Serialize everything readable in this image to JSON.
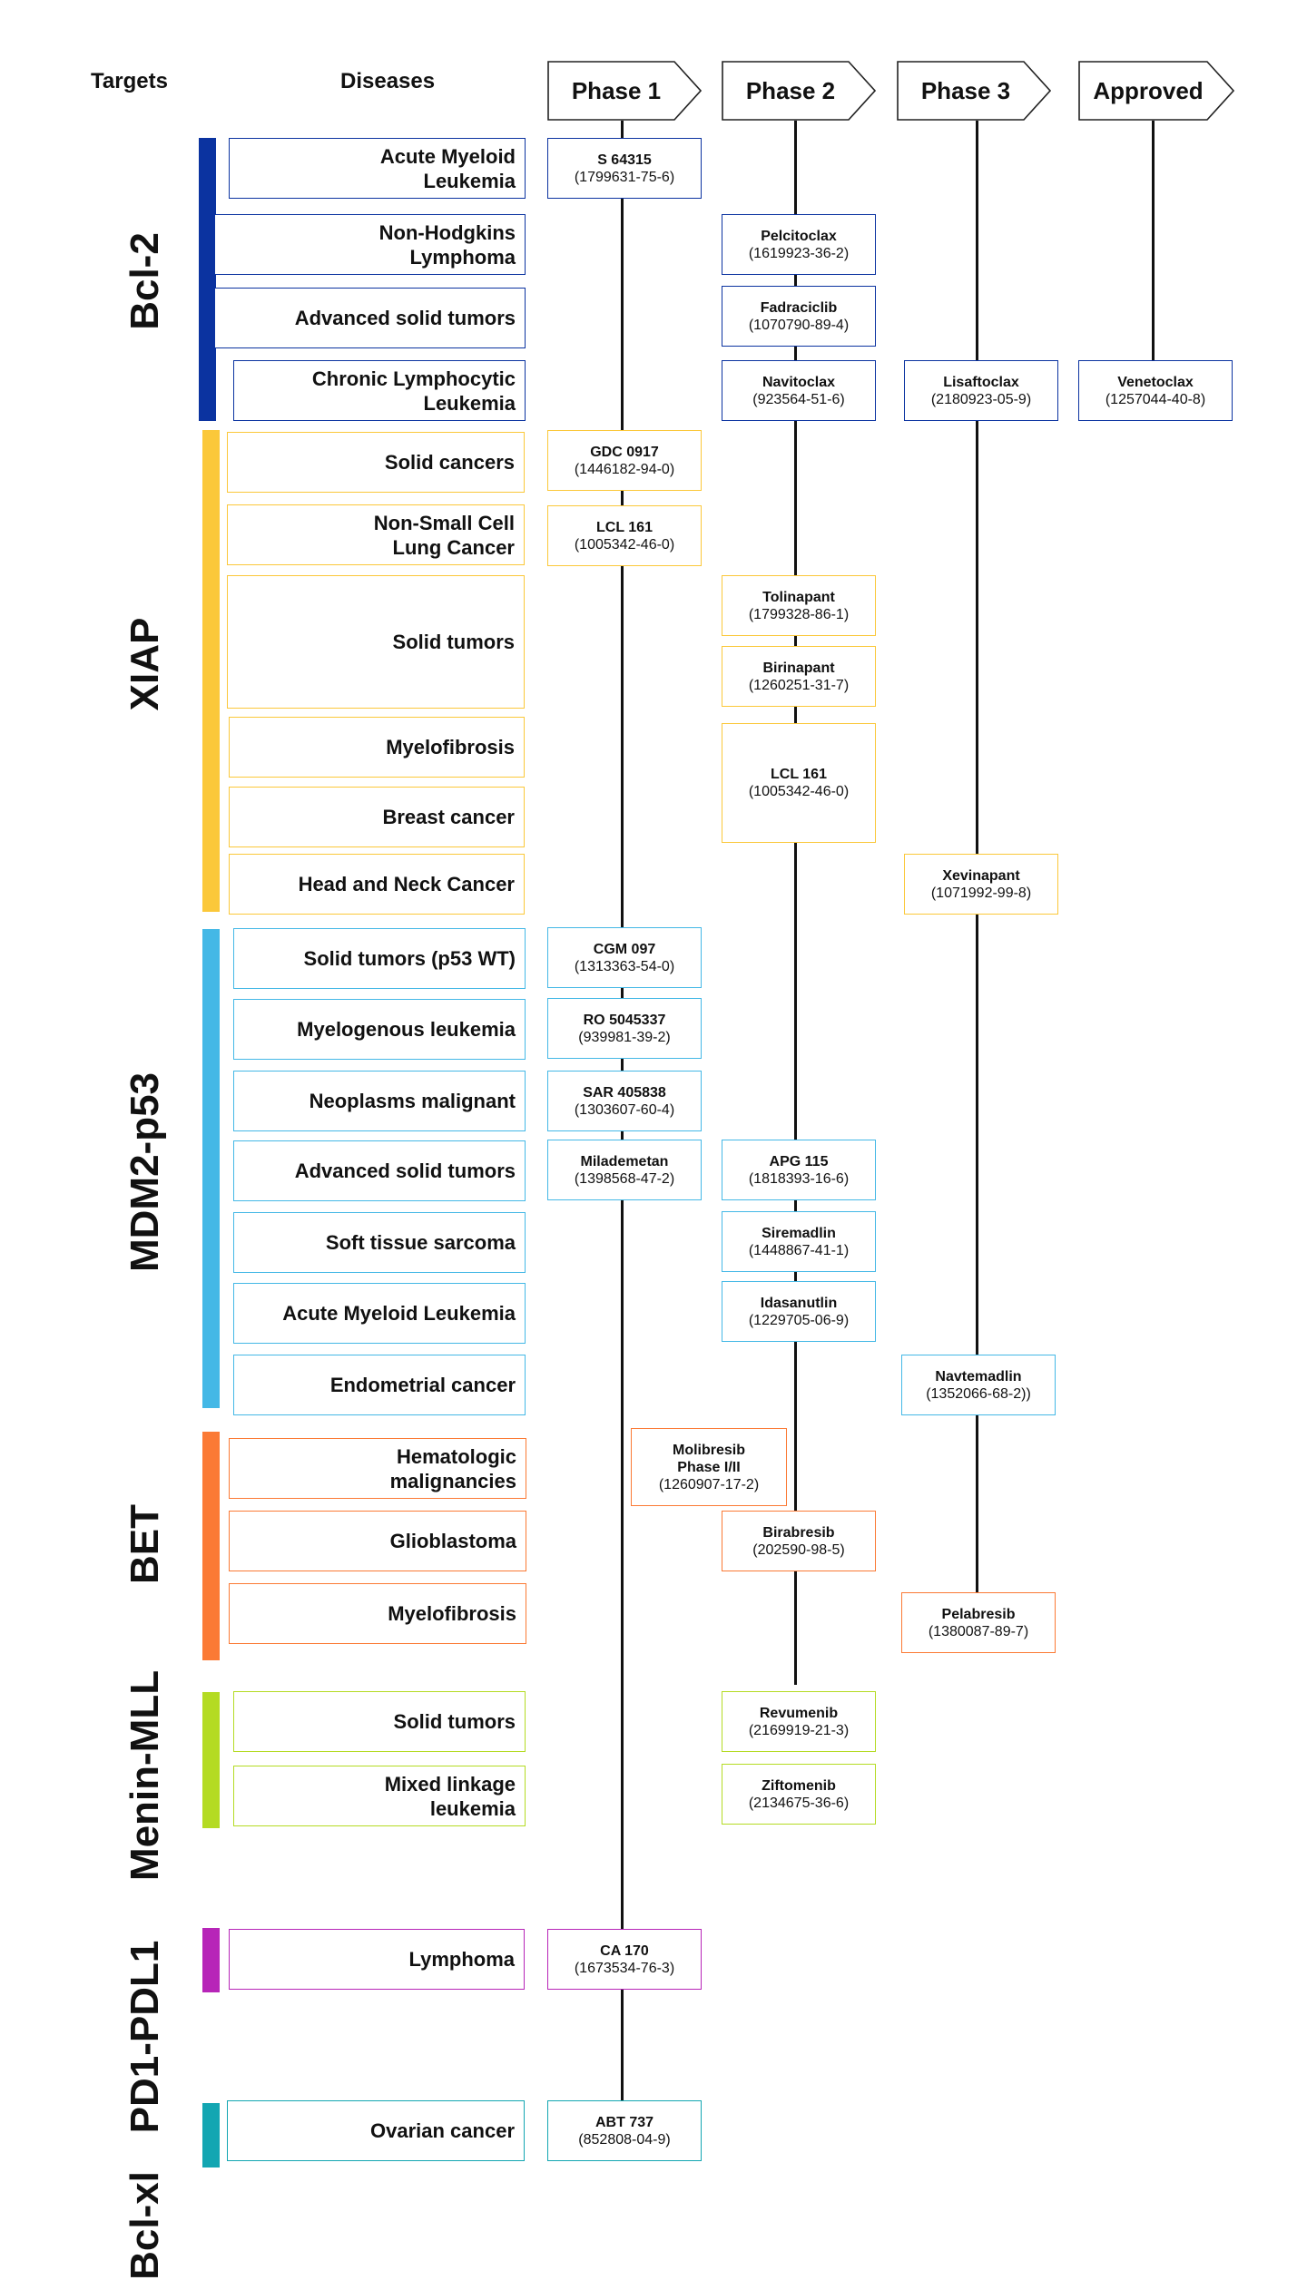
{
  "headers": {
    "targets": "Targets",
    "diseases": "Diseases"
  },
  "phases": [
    "Phase 1",
    "Phase 2",
    "Phase 3",
    "Approved"
  ],
  "targets": [
    {
      "label": "Bcl-2",
      "color": "#0b33a0",
      "diseases": [
        "Acute Myeloid\nLeukemia",
        "Non-Hodgkins\nLymphoma",
        "Advanced solid tumors",
        "Chronic Lymphocytic\nLeukemia"
      ],
      "drugs": [
        {
          "name": "S 64315",
          "cas": "(1799631-75-6)"
        },
        {
          "name": "Pelcitoclax",
          "cas": "(1619923-36-2)"
        },
        {
          "name": "Fadraciclib",
          "cas": "(1070790-89-4)"
        },
        {
          "name": "Navitoclax",
          "cas": "(923564-51-6)"
        },
        {
          "name": "Lisaftoclax",
          "cas": "(2180923-05-9)"
        },
        {
          "name": "Venetoclax",
          "cas": "(1257044-40-8)"
        }
      ]
    },
    {
      "label": "XIAP",
      "color": "#fbc83a",
      "diseases": [
        "Solid cancers",
        "Non-Small Cell\nLung Cancer",
        "Solid tumors",
        "Myelofibrosis",
        "Breast cancer",
        "Head and Neck Cancer"
      ],
      "drugs": [
        {
          "name": "GDC 0917",
          "cas": "(1446182-94-0)"
        },
        {
          "name": "LCL 161",
          "cas": "(1005342-46-0)"
        },
        {
          "name": "Tolinapant",
          "cas": "(1799328-86-1)"
        },
        {
          "name": "Birinapant",
          "cas": "(1260251-31-7)"
        },
        {
          "name": "LCL 161",
          "cas": "(1005342-46-0)"
        },
        {
          "name": "Xevinapant",
          "cas": "(1071992-99-8)"
        }
      ]
    },
    {
      "label": "MDM2-p53",
      "color": "#44b8e6",
      "diseases": [
        "Solid tumors (p53 WT)",
        "Myelogenous leukemia",
        "Neoplasms malignant",
        "Advanced solid tumors",
        "Soft tissue sarcoma",
        "Acute Myeloid Leukemia",
        "Endometrial cancer"
      ],
      "drugs": [
        {
          "name": "CGM 097",
          "cas": "(1313363-54-0)"
        },
        {
          "name": "RO 5045337",
          "cas": "(939981-39-2)"
        },
        {
          "name": "SAR 405838",
          "cas": "(1303607-60-4)"
        },
        {
          "name": "Milademetan",
          "cas": "(1398568-47-2)"
        },
        {
          "name": "APG 115",
          "cas": "(1818393-16-6)"
        },
        {
          "name": "Siremadlin",
          "cas": "(1448867-41-1)"
        },
        {
          "name": "Idasanutlin",
          "cas": "(1229705-06-9)"
        },
        {
          "name": "Navtemadlin",
          "cas": "(1352066-68-2))"
        }
      ]
    },
    {
      "label": "BET",
      "color": "#fb7a35",
      "diseases": [
        "Hematologic\nmalignancies",
        "Glioblastoma",
        "Myelofibrosis"
      ],
      "drugs": [
        {
          "name": "Molibresib\nPhase I/II",
          "cas": "(1260907-17-2)"
        },
        {
          "name": "Birabresib",
          "cas": "(202590-98-5)"
        },
        {
          "name": "Pelabresib",
          "cas": "(1380087-89-7)"
        }
      ]
    },
    {
      "label": "Menin-MLL",
      "color": "#b4db23",
      "diseases": [
        "Solid tumors",
        "Mixed linkage\nleukemia"
      ],
      "drugs": [
        {
          "name": "Revumenib",
          "cas": "(2169919-21-3)"
        },
        {
          "name": "Ziftomenib",
          "cas": "(2134675-36-6)"
        }
      ]
    },
    {
      "label": "PD1-PDL1",
      "color": "#b725b8",
      "diseases": [
        "Lymphoma"
      ],
      "drugs": [
        {
          "name": "CA 170",
          "cas": "(1673534-76-3)"
        }
      ]
    },
    {
      "label": "Bcl-xl",
      "color": "#13a6b2",
      "diseases": [
        "Ovarian cancer"
      ],
      "drugs": [
        {
          "name": "ABT 737",
          "cas": "(852808-04-9)"
        }
      ]
    }
  ]
}
